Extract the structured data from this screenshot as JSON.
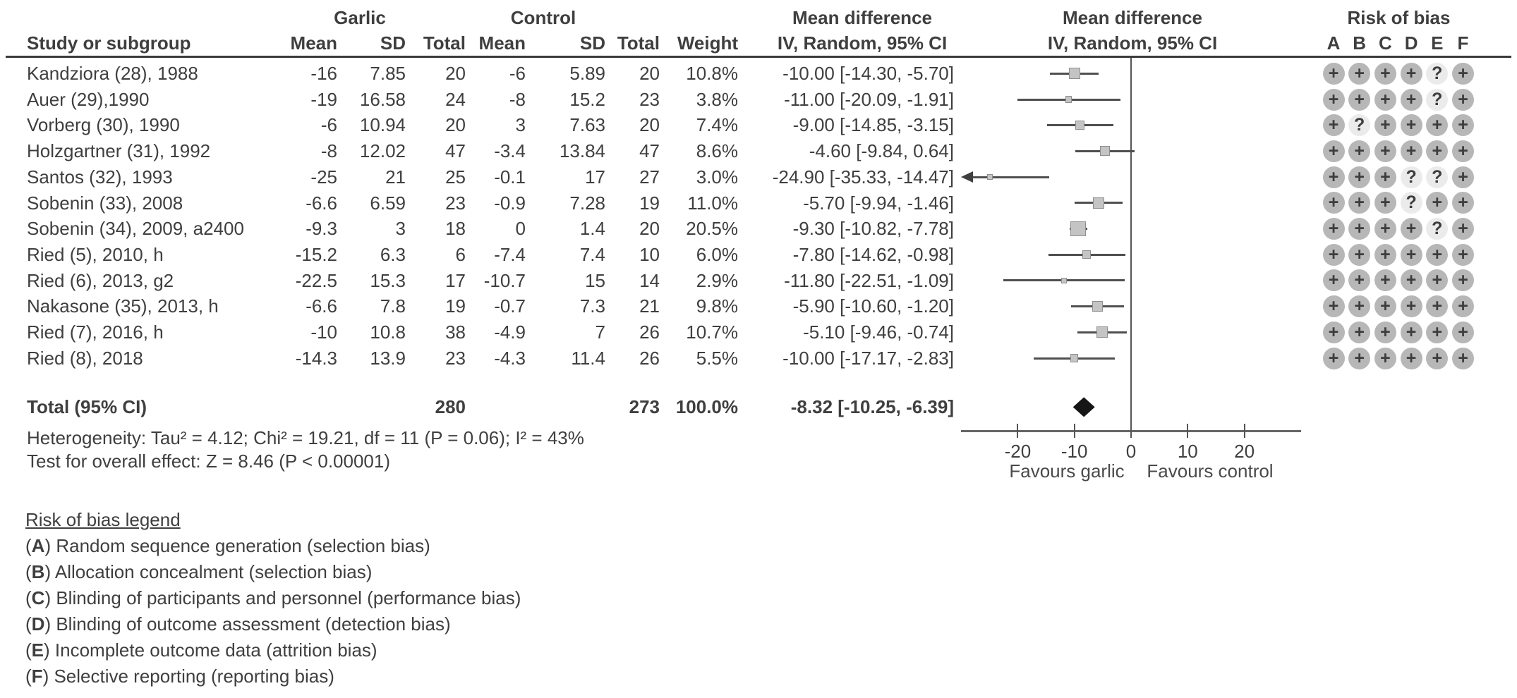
{
  "header": {
    "study_col": "Study or subgroup",
    "group_garlic": "Garlic",
    "group_control": "Control",
    "col_mean": "Mean",
    "col_sd": "SD",
    "col_total": "Total",
    "col_weight": "Weight",
    "md_title": "Mean difference",
    "md_subtitle": "IV, Random, 95% CI",
    "rob_title": "Risk of bias",
    "rob_letters": [
      "A",
      "B",
      "C",
      "D",
      "E",
      "F"
    ]
  },
  "chart_data": {
    "type": "forest",
    "effect_measure": "Mean difference, IV, Random, 95% CI",
    "axis": {
      "min": -30,
      "max": 30,
      "ticks": [
        -20,
        -10,
        0,
        10,
        20
      ],
      "xlabel_left": "Favours garlic",
      "xlabel_right": "Favours control"
    },
    "studies": [
      {
        "study": "Kandziora (28), 1988",
        "garlic": {
          "mean": "-16",
          "sd": "7.85",
          "total": "20"
        },
        "control": {
          "mean": "-6",
          "sd": "5.89",
          "total": "20"
        },
        "weight": "10.8%",
        "md_text": "-10.00 [-14.30, -5.70]",
        "md": -10.0,
        "ci_low": -14.3,
        "ci_high": -5.7,
        "bias": [
          "+",
          "+",
          "+",
          "+",
          "?",
          "+"
        ]
      },
      {
        "study": "Auer (29),1990",
        "garlic": {
          "mean": "-19",
          "sd": "16.58",
          "total": "24"
        },
        "control": {
          "mean": "-8",
          "sd": "15.2",
          "total": "23"
        },
        "weight": "3.8%",
        "md_text": "-11.00 [-20.09, -1.91]",
        "md": -11.0,
        "ci_low": -20.09,
        "ci_high": -1.91,
        "bias": [
          "+",
          "+",
          "+",
          "+",
          "?",
          "+"
        ]
      },
      {
        "study": "Vorberg (30), 1990",
        "garlic": {
          "mean": "-6",
          "sd": "10.94",
          "total": "20"
        },
        "control": {
          "mean": "3",
          "sd": "7.63",
          "total": "20"
        },
        "weight": "7.4%",
        "md_text": "-9.00 [-14.85, -3.15]",
        "md": -9.0,
        "ci_low": -14.85,
        "ci_high": -3.15,
        "bias": [
          "+",
          "?",
          "+",
          "+",
          "+",
          "+"
        ]
      },
      {
        "study": "Holzgartner (31), 1992",
        "garlic": {
          "mean": "-8",
          "sd": "12.02",
          "total": "47"
        },
        "control": {
          "mean": "-3.4",
          "sd": "13.84",
          "total": "47"
        },
        "weight": "8.6%",
        "md_text": "-4.60 [-9.84, 0.64]",
        "md": -4.6,
        "ci_low": -9.84,
        "ci_high": 0.64,
        "bias": [
          "+",
          "+",
          "+",
          "+",
          "+",
          "+"
        ]
      },
      {
        "study": "Santos (32), 1993",
        "garlic": {
          "mean": "-25",
          "sd": "21",
          "total": "25"
        },
        "control": {
          "mean": "-0.1",
          "sd": "17",
          "total": "27"
        },
        "weight": "3.0%",
        "md_text": "-24.90 [-35.33, -14.47]",
        "md": -24.9,
        "ci_low": -35.33,
        "ci_high": -14.47,
        "bias": [
          "+",
          "+",
          "+",
          "?",
          "?",
          "+"
        ]
      },
      {
        "study": "Sobenin (33), 2008",
        "garlic": {
          "mean": "-6.6",
          "sd": "6.59",
          "total": "23"
        },
        "control": {
          "mean": "-0.9",
          "sd": "7.28",
          "total": "19"
        },
        "weight": "11.0%",
        "md_text": "-5.70 [-9.94, -1.46]",
        "md": -5.7,
        "ci_low": -9.94,
        "ci_high": -1.46,
        "bias": [
          "+",
          "+",
          "+",
          "?",
          "+",
          "+"
        ]
      },
      {
        "study": "Sobenin (34), 2009, a2400",
        "garlic": {
          "mean": "-9.3",
          "sd": "3",
          "total": "18"
        },
        "control": {
          "mean": "0",
          "sd": "1.4",
          "total": "20"
        },
        "weight": "20.5%",
        "md_text": "-9.30 [-10.82, -7.78]",
        "md": -9.3,
        "ci_low": -10.82,
        "ci_high": -7.78,
        "bias": [
          "+",
          "+",
          "+",
          "+",
          "?",
          "+"
        ]
      },
      {
        "study": "Ried (5), 2010, h",
        "garlic": {
          "mean": "-15.2",
          "sd": "6.3",
          "total": "6"
        },
        "control": {
          "mean": "-7.4",
          "sd": "7.4",
          "total": "10"
        },
        "weight": "6.0%",
        "md_text": "-7.80 [-14.62, -0.98]",
        "md": -7.8,
        "ci_low": -14.62,
        "ci_high": -0.98,
        "bias": [
          "+",
          "+",
          "+",
          "+",
          "+",
          "+"
        ]
      },
      {
        "study": "Ried (6), 2013, g2",
        "garlic": {
          "mean": "-22.5",
          "sd": "15.3",
          "total": "17"
        },
        "control": {
          "mean": "-10.7",
          "sd": "15",
          "total": "14"
        },
        "weight": "2.9%",
        "md_text": "-11.80 [-22.51, -1.09]",
        "md": -11.8,
        "ci_low": -22.51,
        "ci_high": -1.09,
        "bias": [
          "+",
          "+",
          "+",
          "+",
          "+",
          "+"
        ]
      },
      {
        "study": "Nakasone (35), 2013, h",
        "garlic": {
          "mean": "-6.6",
          "sd": "7.8",
          "total": "19"
        },
        "control": {
          "mean": "-0.7",
          "sd": "7.3",
          "total": "21"
        },
        "weight": "9.8%",
        "md_text": "-5.90 [-10.60, -1.20]",
        "md": -5.9,
        "ci_low": -10.6,
        "ci_high": -1.2,
        "bias": [
          "+",
          "+",
          "+",
          "+",
          "+",
          "+"
        ]
      },
      {
        "study": "Ried (7), 2016, h",
        "garlic": {
          "mean": "-10",
          "sd": "10.8",
          "total": "38"
        },
        "control": {
          "mean": "-4.9",
          "sd": "7",
          "total": "26"
        },
        "weight": "10.7%",
        "md_text": "-5.10 [-9.46, -0.74]",
        "md": -5.1,
        "ci_low": -9.46,
        "ci_high": -0.74,
        "bias": [
          "+",
          "+",
          "+",
          "+",
          "+",
          "+"
        ]
      },
      {
        "study": "Ried (8), 2018",
        "garlic": {
          "mean": "-14.3",
          "sd": "13.9",
          "total": "23"
        },
        "control": {
          "mean": "-4.3",
          "sd": "11.4",
          "total": "26"
        },
        "weight": "5.5%",
        "md_text": "-10.00 [-17.17, -2.83]",
        "md": -10.0,
        "ci_low": -17.17,
        "ci_high": -2.83,
        "bias": [
          "+",
          "+",
          "+",
          "+",
          "+",
          "+"
        ]
      }
    ],
    "total": {
      "label": "Total (95% CI)",
      "garlic_total": "280",
      "control_total": "273",
      "weight": "100.0%",
      "md_text": "-8.32 [-10.25, -6.39]",
      "md": -8.32,
      "ci_low": -10.25,
      "ci_high": -6.39
    },
    "heterogeneity": "Heterogeneity: Tau² = 4.12; Chi² = 19.21, df = 11 (P = 0.06); I² = 43%",
    "overall_effect": "Test for overall effect: Z = 8.46 (P < 0.00001)"
  },
  "rob_legend": {
    "title": "Risk of bias legend",
    "items": [
      {
        "key": "A",
        "label": "Random sequence generation (selection bias)"
      },
      {
        "key": "B",
        "label": "Allocation concealment (selection bias)"
      },
      {
        "key": "C",
        "label": "Blinding of participants and personnel (performance bias)"
      },
      {
        "key": "D",
        "label": "Blinding of outcome assessment (detection bias)"
      },
      {
        "key": "E",
        "label": "Incomplete outcome data (attrition bias)"
      },
      {
        "key": "F",
        "label": "Selective reporting (reporting bias)"
      }
    ]
  },
  "colors": {
    "plus_circle": "#b7b7b7",
    "unclear_circle": "#ebebeb",
    "circle_symbol": "#3d3d3d",
    "marker_fill": "#c4c4c4",
    "ci_line": "#4f4f4f",
    "diamond": "#161616",
    "text": "#3f3f3f"
  }
}
